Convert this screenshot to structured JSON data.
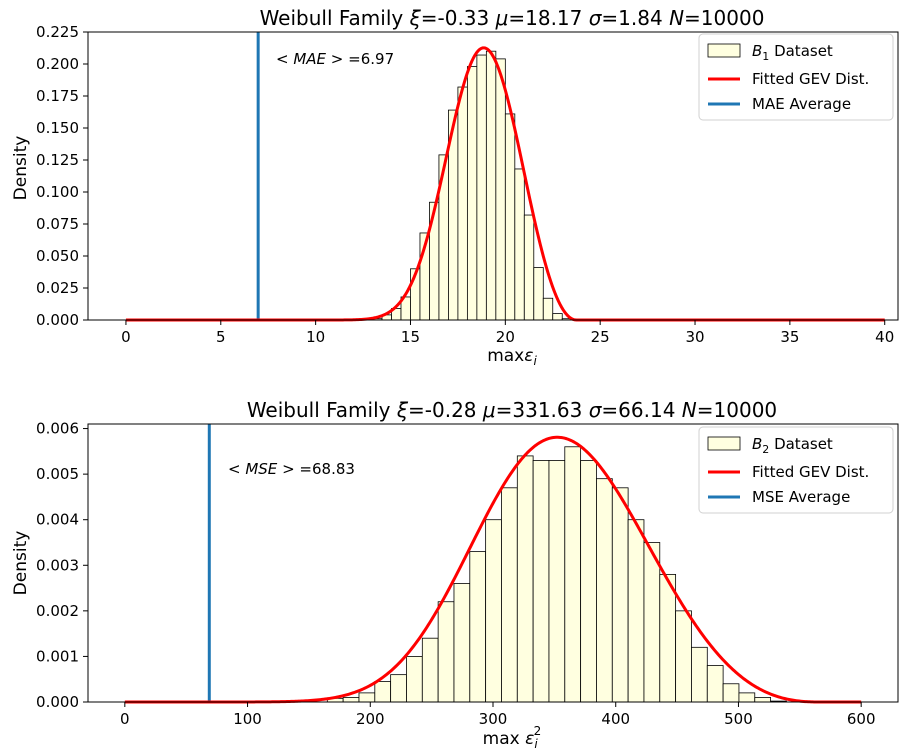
{
  "chart_data": [
    {
      "type": "bar",
      "title_parts": [
        "Weibull Family ",
        "ξ",
        "=-0.33 ",
        "μ",
        "=18.17 ",
        "σ",
        "=1.84 ",
        "N",
        "=10000"
      ],
      "xlabel_parts": [
        "max",
        "ε",
        "i"
      ],
      "ylabel": "Density",
      "xlim": [
        -2,
        40.7
      ],
      "ylim": [
        0,
        0.225
      ],
      "xticks": [
        0,
        5,
        10,
        15,
        20,
        25,
        30,
        35,
        40
      ],
      "xtick_labels": [
        "0",
        "5",
        "10",
        "15",
        "20",
        "25",
        "30",
        "35",
        "40"
      ],
      "yticks": [
        0,
        0.025,
        0.05,
        0.075,
        0.1,
        0.125,
        0.15,
        0.175,
        0.2,
        0.225
      ],
      "ytick_labels": [
        "0.000",
        "0.025",
        "0.050",
        "0.075",
        "0.100",
        "0.125",
        "0.150",
        "0.175",
        "0.200",
        "0.225"
      ],
      "histogram": {
        "name_parts": [
          "B",
          "1",
          " Dataset"
        ],
        "bin_start": 0,
        "bin_width": 0.5,
        "densities": [
          0,
          0,
          0,
          0,
          0,
          0,
          0,
          0,
          0,
          0,
          0,
          0,
          0,
          0,
          0,
          0,
          0,
          0,
          0,
          0,
          0,
          0,
          0,
          0,
          0,
          0,
          0.001,
          0.004,
          0.009,
          0.018,
          0.04,
          0.068,
          0.092,
          0.129,
          0.164,
          0.182,
          0.198,
          0.207,
          0.21,
          0.204,
          0.161,
          0.118,
          0.082,
          0.041,
          0.017,
          0.005,
          0.001,
          0,
          0,
          0,
          0,
          0,
          0,
          0,
          0,
          0,
          0,
          0,
          0,
          0,
          0,
          0,
          0,
          0,
          0,
          0,
          0,
          0,
          0,
          0,
          0,
          0,
          0,
          0,
          0,
          0,
          0,
          0,
          0,
          0
        ]
      },
      "fitted_curve": {
        "name": "Fitted GEV Dist.",
        "type": "gev",
        "xi": -0.33,
        "mu": 18.17,
        "sigma": 1.84,
        "x_range": [
          0,
          40
        ]
      },
      "average_line": {
        "name": "MAE Average",
        "x": 6.97,
        "label_parts": [
          "< ",
          "MAE",
          " >",
          " =6.97"
        ]
      },
      "N": 10000,
      "legend": "top-right",
      "grid": false,
      "colors": {
        "bar_fill": "#ffffe0",
        "bar_edge": "#000000",
        "curve": "#ff0000",
        "average": "#1f77b4"
      }
    },
    {
      "type": "bar",
      "title_parts": [
        "Weibull Family ",
        "ξ",
        "=-0.28 ",
        "μ",
        "=331.63 ",
        "σ",
        "=66.14 ",
        "N",
        "=10000"
      ],
      "xlabel_parts": [
        "max ",
        "ε",
        "i",
        "2"
      ],
      "ylabel": "Density",
      "xlim": [
        -30,
        630
      ],
      "ylim": [
        0,
        0.0061
      ],
      "xticks": [
        0,
        100,
        200,
        300,
        400,
        500,
        600
      ],
      "xtick_labels": [
        "0",
        "100",
        "200",
        "300",
        "400",
        "500",
        "600"
      ],
      "yticks": [
        0,
        0.001,
        0.002,
        0.003,
        0.004,
        0.005,
        0.006
      ],
      "ytick_labels": [
        "0.000",
        "0.001",
        "0.002",
        "0.003",
        "0.004",
        "0.005",
        "0.006"
      ],
      "histogram": {
        "name_parts": [
          "B",
          "2",
          " Dataset"
        ],
        "bin_start": 165,
        "bin_width": 12.9,
        "densities": [
          8e-05,
          0.0001,
          0.0002,
          0.00045,
          0.0006,
          0.001,
          0.0014,
          0.0022,
          0.0026,
          0.0033,
          0.004,
          0.0047,
          0.0054,
          0.0053,
          0.0053,
          0.0056,
          0.0053,
          0.0049,
          0.0047,
          0.004,
          0.0035,
          0.0028,
          0.002,
          0.0012,
          0.0008,
          0.0004,
          0.0002,
          0.0001,
          2e-05,
          0,
          0,
          0,
          0,
          0,
          0,
          0
        ]
      },
      "fitted_curve": {
        "name": "Fitted GEV Dist.",
        "type": "gev",
        "xi": -0.28,
        "mu": 331.63,
        "sigma": 66.14,
        "x_range": [
          0,
          600
        ]
      },
      "average_line": {
        "name": "MSE Average",
        "x": 68.83,
        "label_parts": [
          "< ",
          "MSE",
          " >",
          " =68.83"
        ]
      },
      "N": 10000,
      "legend": "top-right",
      "grid": false,
      "colors": {
        "bar_fill": "#ffffe0",
        "bar_edge": "#000000",
        "curve": "#ff0000",
        "average": "#1f77b4"
      }
    }
  ]
}
